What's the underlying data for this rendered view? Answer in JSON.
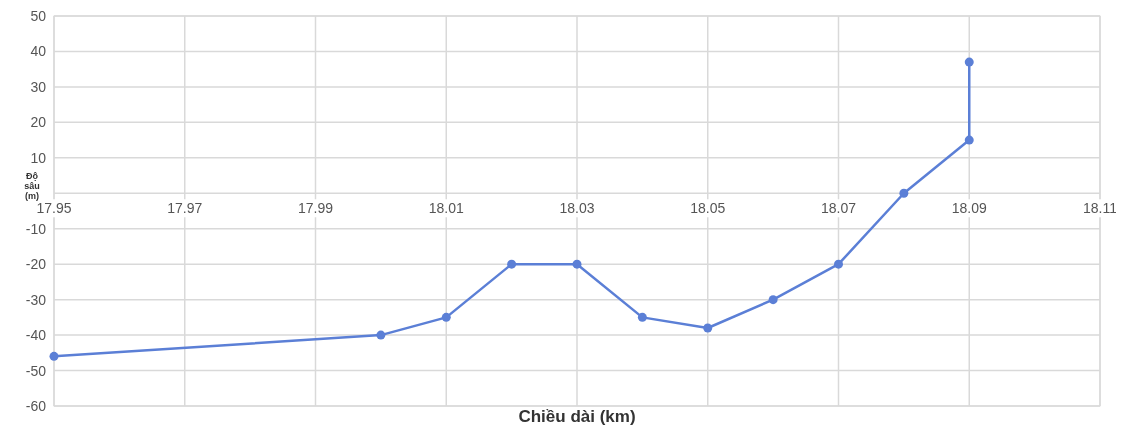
{
  "chart_data": {
    "type": "line",
    "xlabel": "Chiều dài (km)",
    "ylabel": "Độ sâu (m)",
    "x": [
      17.95,
      18.0,
      18.01,
      18.02,
      18.03,
      18.04,
      18.05,
      18.06,
      18.07,
      18.08,
      18.09,
      18.09
    ],
    "series": [
      {
        "color": "#5b7fd6",
        "values": [
          -46,
          -40,
          -35,
          -20,
          -20,
          -35,
          -38,
          -30,
          -20,
          0,
          15,
          37
        ]
      }
    ],
    "xlim": [
      17.95,
      18.11
    ],
    "xticks": [
      17.95,
      17.97,
      17.99,
      18.01,
      18.03,
      18.05,
      18.07,
      18.09,
      18.11
    ],
    "ylim": [
      -60,
      50
    ],
    "yticks": [
      -60,
      -50,
      -40,
      -30,
      -20,
      -10,
      {
        "value": 0,
        "label": null
      },
      10,
      20,
      30,
      40,
      50
    ],
    "grid": true,
    "marker": "circle",
    "line_style": "solid"
  }
}
